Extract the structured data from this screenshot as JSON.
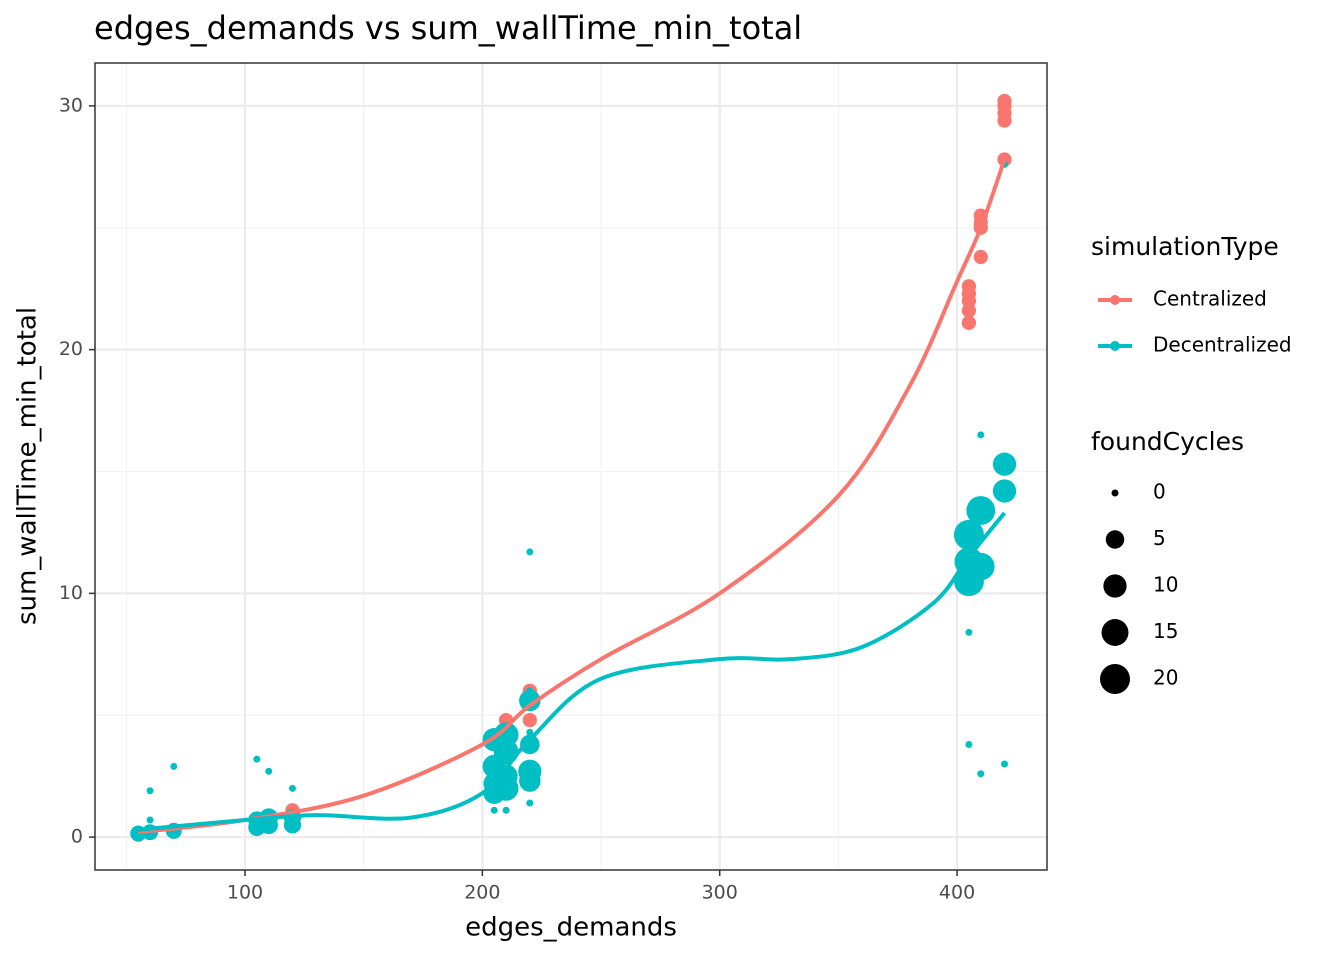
{
  "chart_data": {
    "type": "scatter",
    "title": "edges_demands  vs  sum_wallTime_min_total",
    "x_label": "edges_demands",
    "y_label": "sum_wallTime_min_total",
    "xlim": [
      36.8,
      437.9
    ],
    "ylim": [
      -1.35,
      31.76
    ],
    "xticks": [
      100,
      200,
      300,
      400
    ],
    "yticks": [
      0,
      10,
      20,
      30
    ],
    "minor_xticks": [
      50,
      150,
      250,
      350
    ],
    "minor_yticks": [
      5,
      15,
      25
    ],
    "grid": true,
    "legend_title": "simulationType",
    "size_legend": {
      "title": "foundCycles",
      "values": [
        0,
        5,
        10,
        15,
        20
      ]
    },
    "series": [
      {
        "name": "Centralized",
        "color": "#F8766D",
        "x": [
          55,
          60,
          70,
          105,
          110,
          120,
          205,
          210,
          220,
          220,
          220,
          405,
          405,
          405,
          405,
          405,
          410,
          410,
          410,
          410,
          420,
          420,
          420,
          420,
          420
        ],
        "values": [
          0.1,
          0.2,
          0.3,
          0.7,
          0.8,
          1.1,
          4.1,
          4.8,
          4.8,
          6.0,
          5.7,
          21.1,
          21.6,
          22.0,
          22.3,
          22.6,
          23.8,
          25.0,
          25.2,
          25.5,
          27.8,
          29.4,
          29.7,
          30.0,
          30.2
        ],
        "sizes": [
          2,
          2,
          2,
          2,
          2,
          2,
          2,
          2,
          2,
          2,
          2,
          2,
          2,
          2,
          2,
          2,
          2,
          2,
          2,
          2,
          2,
          2,
          2,
          2,
          2
        ],
        "smooth_x": [
          55,
          100,
          150,
          200,
          220,
          250,
          300,
          350,
          380,
          400,
          410,
          420
        ],
        "smooth_values": [
          0.2,
          0.7,
          1.7,
          3.8,
          5.4,
          7.3,
          10,
          14,
          18.5,
          22.8,
          25,
          27.8
        ]
      },
      {
        "name": "Decentralized",
        "color": "#00BFC4",
        "x": [
          60,
          60,
          70,
          105,
          110,
          120,
          205,
          210,
          220,
          220,
          405,
          405,
          410,
          420,
          410,
          420,
          220,
          220,
          55,
          60,
          70,
          105,
          105,
          110,
          110,
          120,
          120,
          205,
          205,
          205,
          205,
          210,
          210,
          210,
          210,
          220,
          220,
          220,
          220,
          405,
          405,
          405,
          410,
          410,
          420,
          420
        ],
        "values": [
          1.9,
          0.7,
          2.9,
          3.2,
          2.7,
          2.0,
          1.1,
          1.1,
          1.4,
          11.7,
          8.4,
          3.8,
          2.6,
          3.0,
          16.5,
          27.6,
          6.0,
          4.3,
          0.15,
          0.2,
          0.25,
          0.4,
          0.7,
          0.5,
          0.8,
          0.5,
          0.8,
          1.8,
          2.2,
          2.9,
          4.0,
          2.0,
          2.5,
          3.5,
          4.2,
          2.3,
          2.7,
          3.8,
          5.6,
          10.5,
          11.3,
          12.4,
          11.1,
          13.4,
          14.2,
          15.3
        ],
        "sizes": [
          0,
          0,
          0,
          0,
          0,
          0,
          0,
          0,
          0,
          0,
          0,
          0,
          0,
          0,
          0,
          0,
          0,
          0,
          3,
          3,
          3,
          4,
          4,
          5,
          5,
          4,
          4,
          8,
          8,
          10,
          10,
          12,
          10,
          12,
          12,
          8,
          10,
          6,
          8,
          20,
          18,
          20,
          16,
          18,
          10,
          10
        ],
        "smooth_x": [
          55,
          100,
          130,
          170,
          200,
          220,
          250,
          300,
          330,
          360,
          390,
          405,
          420
        ],
        "smooth_values": [
          0.3,
          0.7,
          0.9,
          0.8,
          1.8,
          4,
          6.5,
          7.3,
          7.3,
          7.8,
          9.6,
          11.5,
          13.3
        ]
      }
    ]
  }
}
